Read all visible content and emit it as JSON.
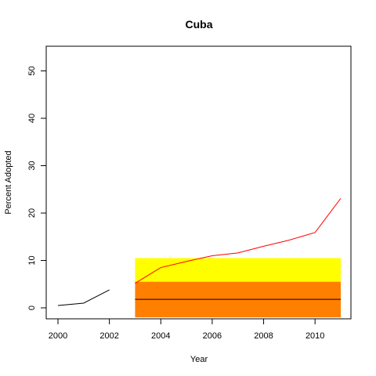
{
  "chart_data": {
    "type": "line",
    "title": "Cuba",
    "xlabel": "Year",
    "ylabel": "Percent Adopted",
    "xlim": [
      2000,
      2011
    ],
    "ylim": [
      0,
      55
    ],
    "xticks": [
      {
        "value": 2000,
        "label": "2000"
      },
      {
        "value": 2002,
        "label": "2002"
      },
      {
        "value": 2004,
        "label": "2004"
      },
      {
        "value": 2006,
        "label": "2006"
      },
      {
        "value": 2008,
        "label": "2008"
      },
      {
        "value": 2010,
        "label": "2010"
      }
    ],
    "yticks": [
      {
        "value": 0,
        "label": "0"
      },
      {
        "value": 10,
        "label": "10"
      },
      {
        "value": 20,
        "label": "20"
      },
      {
        "value": 30,
        "label": "30"
      },
      {
        "value": 40,
        "label": "40"
      },
      {
        "value": 50,
        "label": "50"
      }
    ],
    "bands": [
      {
        "x_from": 2003,
        "x_to": 2011,
        "y_from": -2,
        "y_to": 10.5,
        "color": "#ffff00"
      },
      {
        "x_from": 2003,
        "x_to": 2011,
        "y_from": -2,
        "y_to": 5.5,
        "color": "#ff7f00"
      }
    ],
    "reference_line": {
      "x_from": 2003,
      "x_to": 2011,
      "y": 1.8,
      "color": "#000000"
    },
    "series": [
      {
        "color": "#000000",
        "x": [
          2000,
          2001,
          2002
        ],
        "values": [
          0.5,
          1.0,
          3.8
        ]
      },
      {
        "color": "#ff0000",
        "x": [
          2003,
          2004,
          2005,
          2006,
          2007,
          2008,
          2009,
          2010,
          2011
        ],
        "values": [
          5.2,
          8.5,
          9.8,
          11.0,
          11.6,
          13.0,
          14.3,
          15.9,
          23.1
        ]
      }
    ],
    "grid": false,
    "legend": "none"
  }
}
